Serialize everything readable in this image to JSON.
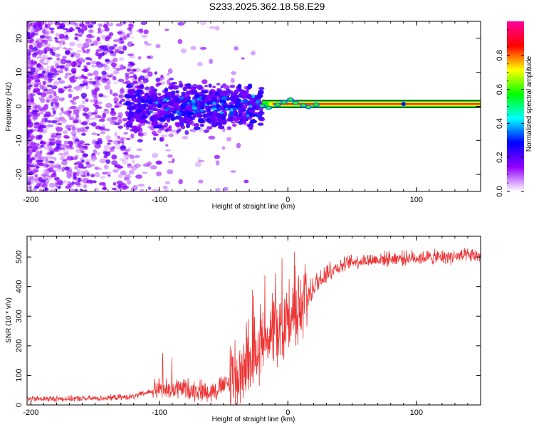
{
  "title": "S233.2025.362.18.58.E29",
  "chart_data": [
    {
      "type": "heatmap",
      "title": "S233.2025.362.18.58.E29",
      "xlabel": "Height of straight line (km)",
      "ylabel": "Frequency (Hz)",
      "xlim": [
        -203,
        150
      ],
      "ylim": [
        -25,
        25
      ],
      "xticks": [
        -200,
        -100,
        0,
        100
      ],
      "yticks": [
        -20,
        -10,
        0,
        10,
        20
      ],
      "colorbar": {
        "label": "Normalized spectral amplitude",
        "range": [
          0,
          1
        ],
        "ticks": [
          0.0,
          0.2,
          0.4,
          0.6,
          0.8
        ],
        "colors": [
          "#ffffff",
          "#9400ff",
          "#0000ff",
          "#00ffff",
          "#00ff00",
          "#ffff00",
          "#ff0000",
          "#ff00a0"
        ]
      },
      "features": {
        "noise_floor_region": [
          -203,
          -20
        ],
        "signal_line_start_km": -20,
        "signal_line_frequency_hz": 0.7
      }
    },
    {
      "type": "line",
      "xlabel": "Height of straight line (km)",
      "ylabel": "SNR (10 * v/v)",
      "xlim": [
        -203,
        150
      ],
      "ylim": [
        0,
        570
      ],
      "xticks": [
        -200,
        -100,
        0,
        100
      ],
      "yticks": [
        0,
        100,
        200,
        300,
        400,
        500
      ],
      "color": "#ee3333",
      "envelope": [
        {
          "x": -203,
          "y": 20
        },
        {
          "x": -150,
          "y": 22
        },
        {
          "x": -120,
          "y": 28
        },
        {
          "x": -100,
          "y": 55
        },
        {
          "x": -80,
          "y": 55
        },
        {
          "x": -60,
          "y": 45
        },
        {
          "x": -45,
          "y": 75
        },
        {
          "x": -30,
          "y": 160
        },
        {
          "x": -20,
          "y": 220
        },
        {
          "x": -10,
          "y": 260
        },
        {
          "x": 0,
          "y": 290
        },
        {
          "x": 10,
          "y": 320
        },
        {
          "x": 20,
          "y": 400
        },
        {
          "x": 30,
          "y": 450
        },
        {
          "x": 50,
          "y": 485
        },
        {
          "x": 80,
          "y": 495
        },
        {
          "x": 120,
          "y": 500
        },
        {
          "x": 150,
          "y": 505
        }
      ]
    }
  ]
}
